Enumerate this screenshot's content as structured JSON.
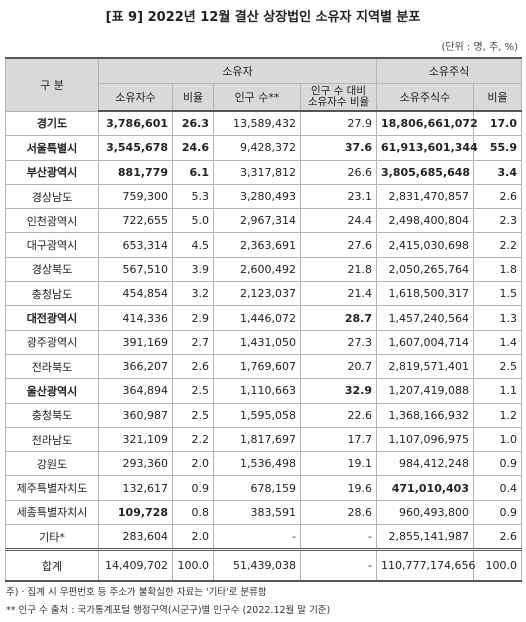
{
  "header": {
    "title": "[표 9] 2022년 12월 결산 상장법인 소유자 지역별 분포",
    "unit": "(단위 : 명, 주, %)"
  },
  "table": {
    "head": {
      "category": "구 분",
      "owners": "소유자",
      "shares": "소유주식",
      "columns": [
        "소유자수",
        "비율",
        "인구 수**",
        "인구 수 대비 소유자수 비율",
        "소유주식수",
        "비율"
      ]
    },
    "rows": [
      [
        "경기도",
        "3,786,601",
        "26.3",
        "13,589,432",
        "27.9",
        "18,806,661,072",
        "17.0"
      ],
      [
        "서울특별시",
        "3,545,678",
        "24.6",
        "9,428,372",
        "37.6",
        "61,913,601,344",
        "55.9"
      ],
      [
        "부산광역시",
        "881,779",
        "6.1",
        "3,317,812",
        "26.6",
        "3,805,685,648",
        "3.4"
      ],
      [
        "경상남도",
        "759,300",
        "5.3",
        "3,280,493",
        "23.1",
        "2,831,470,857",
        "2.6"
      ],
      [
        "인천광역시",
        "722,655",
        "5.0",
        "2,967,314",
        "24.4",
        "2,498,400,804",
        "2.3"
      ],
      [
        "대구광역시",
        "653,314",
        "4.5",
        "2,363,691",
        "27.6",
        "2,415,030,698",
        "2.2"
      ],
      [
        "경상북도",
        "567,510",
        "3.9",
        "2,600,492",
        "21.8",
        "2,050,265,764",
        "1.8"
      ],
      [
        "충청남도",
        "454,854",
        "3.2",
        "2,123,037",
        "21.4",
        "1,618,500,317",
        "1.5"
      ],
      [
        "대전광역시",
        "414,336",
        "2.9",
        "1,446,072",
        "28.7",
        "1,457,240,564",
        "1.3"
      ],
      [
        "광주광역시",
        "391,169",
        "2.7",
        "1,431,050",
        "27.3",
        "1,607,004,714",
        "1.4"
      ],
      [
        "전라북도",
        "366,207",
        "2.6",
        "1,769,607",
        "20.7",
        "2,819,571,401",
        "2.5"
      ],
      [
        "울산광역시",
        "364,894",
        "2.5",
        "1,110,663",
        "32.9",
        "1,207,419,088",
        "1.1"
      ],
      [
        "충청북도",
        "360,987",
        "2.5",
        "1,595,058",
        "22.6",
        "1,368,166,932",
        "1.2"
      ],
      [
        "전라남도",
        "321,109",
        "2.2",
        "1,817,697",
        "17.7",
        "1,107,096,975",
        "1.0"
      ],
      [
        "강원도",
        "293,360",
        "2.0",
        "1,536,498",
        "19.1",
        "984,412,248",
        "0.9"
      ],
      [
        "제주특별자치도",
        "132,617",
        "0.9",
        "678,159",
        "19.6",
        "471,010,403",
        "0.4"
      ],
      [
        "세종특별자치시",
        "109,728",
        "0.8",
        "383,591",
        "28.6",
        "960,493,800",
        "0.9"
      ],
      [
        "기타*",
        "283,604",
        "2.0",
        "-",
        "-",
        "2,855,141,987",
        "2.6"
      ]
    ],
    "total": [
      "합계",
      "14,409,702",
      "100.0",
      "51,439,038",
      "-",
      "110,777,174,656",
      "100.0"
    ]
  },
  "notes": [
    "주) · 집계 시 우편번호 등 주소가 불확실한 자료는 '기타'로 분류함",
    "** 인구 수 출처 : 국가통계포털 행정구역(시군구)별 인구수 (2022.12월 말 기준)"
  ]
}
